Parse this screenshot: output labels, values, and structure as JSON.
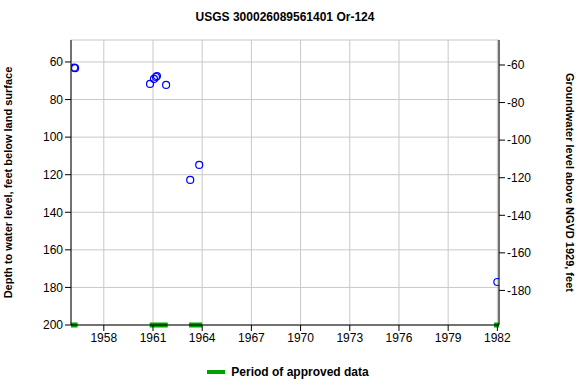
{
  "chart_data": {
    "type": "scatter",
    "title": "USGS 300026089561401 Or-124",
    "x_label": "",
    "y_label": "Depth to water level, feet below land surface",
    "y2_label": "Groundwater level above NGVD 1929, feet",
    "series": [
      {
        "name": "Depth to water level",
        "color": "#0000ff",
        "marker": "circle",
        "x": [
          1956.2,
          1956.25,
          1960.82,
          1961.06,
          1961.18,
          1961.24,
          1961.8,
          1963.27,
          1963.82,
          1982.0
        ],
        "values": [
          63.0,
          63.3,
          71.7,
          69.0,
          68.0,
          67.5,
          72.2,
          122.8,
          114.8,
          177.1
        ]
      }
    ],
    "xlim": [
      1956.0,
      1982.1
    ],
    "xticks": [
      1958,
      1961,
      1964,
      1967,
      1970,
      1973,
      1976,
      1979,
      1982
    ],
    "ylim": [
      48.3,
      200
    ],
    "yticks": [
      60,
      80,
      100,
      120,
      140,
      160,
      180,
      200
    ],
    "y2lim": [
      -198.4,
      -46.7
    ],
    "y2ticks": [
      -60,
      -80,
      -100,
      -120,
      -140,
      -160,
      -180
    ],
    "grid": true,
    "legend": "bottom",
    "approved_periods": {
      "name": "Period of approved data",
      "color": "#00a000",
      "start": [
        1956.0,
        1960.8,
        1963.2,
        1981.8
      ],
      "end": [
        1956.4,
        1961.9,
        1964.0,
        1982.1
      ]
    }
  }
}
